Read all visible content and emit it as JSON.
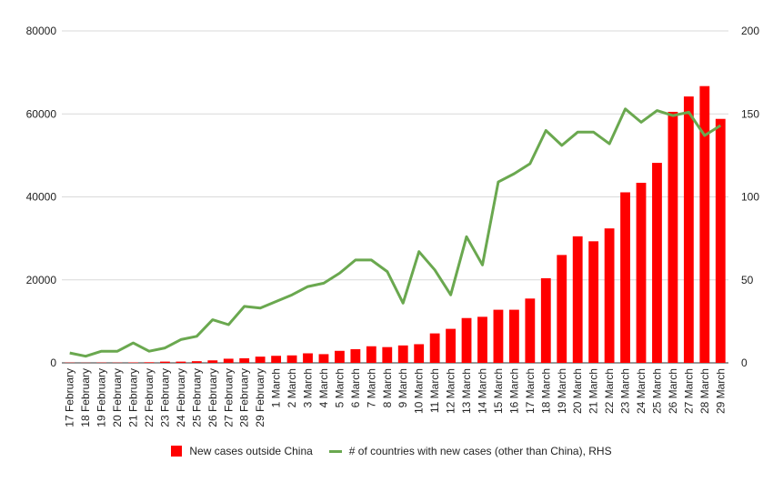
{
  "chart_data": {
    "type": "bar+line",
    "title": "",
    "xlabel": "",
    "ylabel": "",
    "categories": [
      "17 February",
      "18 February",
      "19 February",
      "20 February",
      "21 February",
      "22 February",
      "23 February",
      "24 February",
      "25 February",
      "26 February",
      "27 February",
      "28 February",
      "29 February",
      "1 March",
      "2 March",
      "3 March",
      "4 March",
      "5 March",
      "6 March",
      "7 March",
      "8 March",
      "9 March",
      "10 March",
      "11 March",
      "12 March",
      "13 March",
      "14 March",
      "15 March",
      "16 March",
      "17 March",
      "18 March",
      "19 March",
      "20 March",
      "21 March",
      "22 March",
      "23 March",
      "24 March",
      "25 March",
      "26 March",
      "27 March",
      "28 March",
      "29 March"
    ],
    "y_left": {
      "ticks": [
        "0",
        "20000",
        "40000",
        "60000",
        "80000"
      ],
      "ylim": [
        0,
        80000
      ]
    },
    "y_right": {
      "ticks": [
        "0",
        "50",
        "100",
        "150",
        "200"
      ],
      "ylim": [
        0,
        200
      ]
    },
    "series": [
      {
        "name": "New cases outside China",
        "kind": "bar",
        "axis": "left",
        "color": "#ff0000",
        "values": [
          60,
          40,
          70,
          60,
          100,
          150,
          300,
          300,
          400,
          600,
          1000,
          1100,
          1500,
          1700,
          1800,
          2300,
          2100,
          2900,
          3300,
          4000,
          3800,
          4200,
          4500,
          7100,
          8200,
          10800,
          11100,
          12800,
          12800,
          15500,
          20400,
          26000,
          30500,
          29300,
          32400,
          41100,
          43400,
          48200,
          60500,
          64200,
          66700,
          58800
        ]
      },
      {
        "name": "# of countries with new cases (other than China), RHS",
        "kind": "line",
        "axis": "right",
        "color": "#6aa84f",
        "values": [
          6,
          4,
          7,
          7,
          12,
          7,
          9,
          14,
          16,
          26,
          23,
          34,
          33,
          37,
          41,
          46,
          48,
          54,
          62,
          62,
          55,
          36,
          67,
          56,
          41,
          76,
          59,
          109,
          114,
          120,
          140,
          131,
          139,
          139,
          132,
          153,
          145,
          152,
          149,
          151,
          137,
          143
        ]
      }
    ],
    "grid": true,
    "legend_position": "bottom"
  }
}
